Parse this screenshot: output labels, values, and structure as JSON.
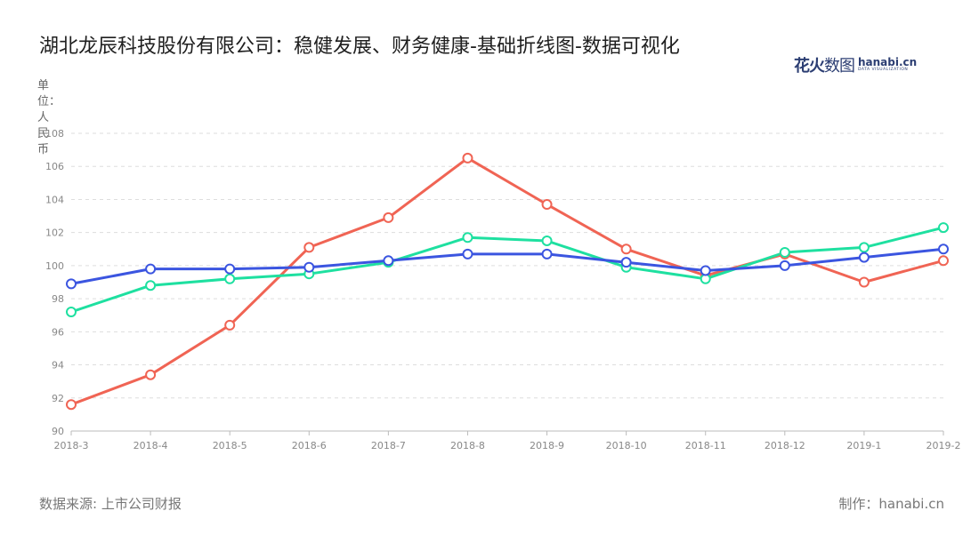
{
  "title": "湖北龙辰科技股份有限公司：稳健发展、财务健康-基础折线图-数据可视化",
  "unit_label": "单位：人民币",
  "logo": {
    "cn_a": "花",
    "cn_b": "火",
    "cn_c": "数图",
    "domain": "hanabi.cn",
    "tagline": "DATA VISUALIZATION"
  },
  "footer": {
    "source": "数据来源: 上市公司财报",
    "maker": "制作：hanabi.cn"
  },
  "colors": {
    "blue": "#3b55e0",
    "green": "#1ee0a0",
    "red": "#f06454",
    "grid": "#dddddd",
    "axis": "#bbbbbb",
    "tick": "#888888"
  },
  "chart_data": {
    "type": "line",
    "title": "湖北龙辰科技股份有限公司：稳健发展、财务健康-基础折线图-数据可视化",
    "ylabel": "单位：人民币",
    "xlabel": "",
    "ylim": [
      90,
      108
    ],
    "yticks": [
      90,
      92,
      94,
      96,
      98,
      100,
      102,
      104,
      106,
      108
    ],
    "grid": true,
    "categories": [
      "2018-3",
      "2018-4",
      "2018-5",
      "2018-6",
      "2018-7",
      "2018-8",
      "2018-9",
      "2018-10",
      "2018-11",
      "2018-12",
      "2019-1",
      "2019-2"
    ],
    "series": [
      {
        "color": "#f06454",
        "values": [
          91.6,
          93.4,
          96.4,
          101.1,
          102.9,
          106.5,
          103.7,
          101.0,
          99.4,
          100.7,
          99.0,
          100.3
        ]
      },
      {
        "color": "#1ee0a0",
        "values": [
          97.2,
          98.8,
          99.2,
          99.5,
          100.2,
          101.7,
          101.5,
          99.9,
          99.2,
          100.8,
          101.1,
          102.3
        ]
      },
      {
        "color": "#3b55e0",
        "values": [
          98.9,
          99.8,
          99.8,
          99.9,
          100.3,
          100.7,
          100.7,
          100.2,
          99.7,
          100.0,
          100.5,
          101.0
        ]
      }
    ]
  }
}
